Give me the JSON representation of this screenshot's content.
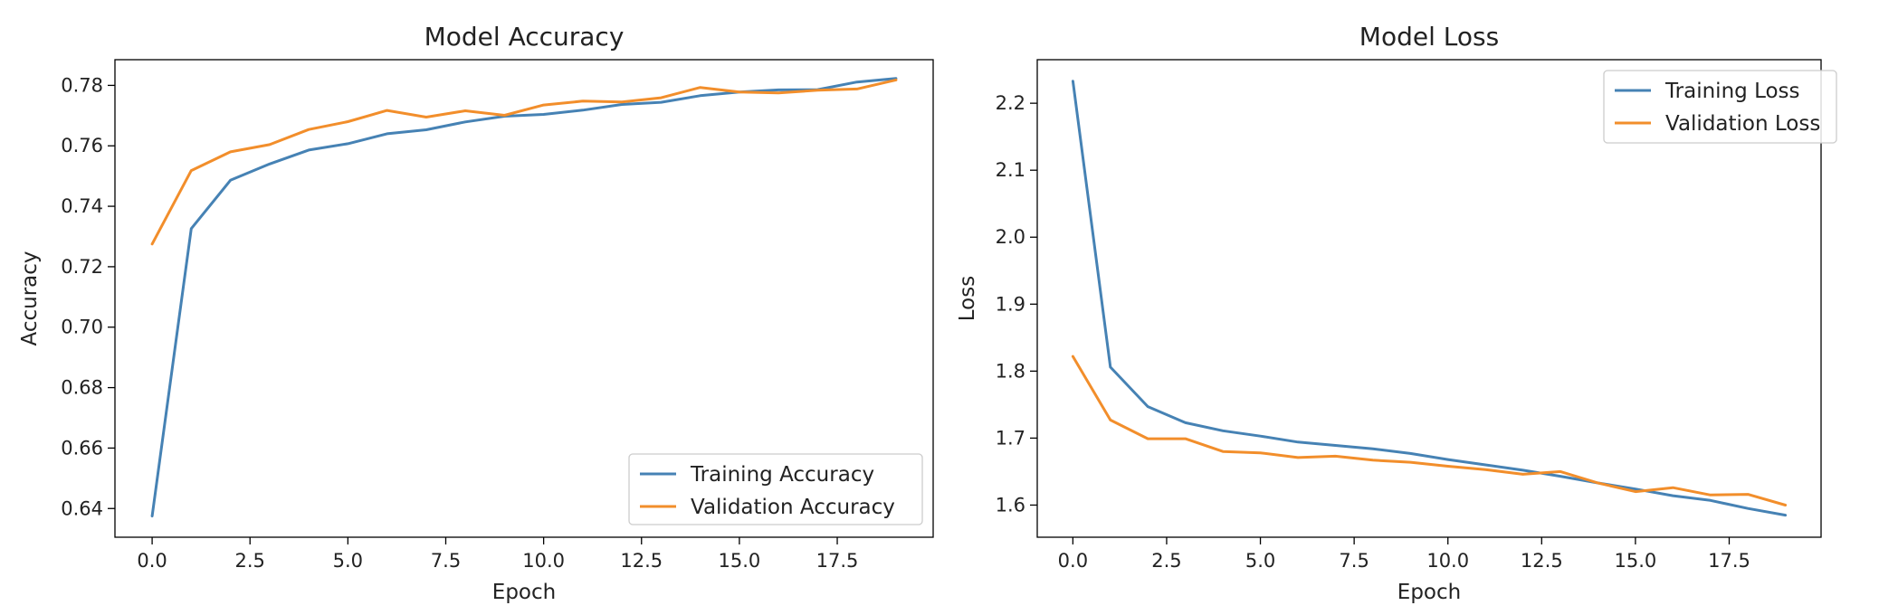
{
  "chart_data": [
    {
      "type": "line",
      "title": "Model Accuracy",
      "xlabel": "Epoch",
      "ylabel": "Accuracy",
      "xlim": [
        -0.95,
        19.95
      ],
      "ylim": [
        0.6305,
        0.7885
      ],
      "xticks": [
        0.0,
        2.5,
        5.0,
        7.5,
        10.0,
        12.5,
        15.0,
        17.5
      ],
      "xtick_labels": [
        "0.0",
        "2.5",
        "5.0",
        "7.5",
        "10.0",
        "12.5",
        "15.0",
        "17.5"
      ],
      "yticks": [
        0.64,
        0.66,
        0.68,
        0.7,
        0.72,
        0.74,
        0.76,
        0.78
      ],
      "ytick_labels": [
        "0.64",
        "0.66",
        "0.68",
        "0.70",
        "0.72",
        "0.74",
        "0.76",
        "0.78"
      ],
      "grid": false,
      "legend": "bottom-right",
      "x": [
        0,
        1,
        2,
        3,
        4,
        5,
        6,
        7,
        8,
        9,
        10,
        11,
        12,
        13,
        14,
        15,
        16,
        17,
        18,
        19
      ],
      "series": [
        {
          "name": "Training Accuracy",
          "color": "#4682b4",
          "values": [
            0.6375,
            0.7326,
            0.7486,
            0.754,
            0.7586,
            0.7607,
            0.764,
            0.7653,
            0.7679,
            0.7698,
            0.7704,
            0.7718,
            0.7737,
            0.7744,
            0.7766,
            0.7778,
            0.7785,
            0.7786,
            0.7811,
            0.7823
          ]
        },
        {
          "name": "Validation Accuracy",
          "color": "#f28e2b",
          "values": [
            0.7275,
            0.7518,
            0.758,
            0.7604,
            0.7654,
            0.768,
            0.7717,
            0.7695,
            0.7716,
            0.7701,
            0.7735,
            0.7748,
            0.7745,
            0.7759,
            0.7793,
            0.7778,
            0.7775,
            0.7784,
            0.7788,
            0.7818
          ]
        }
      ]
    },
    {
      "type": "line",
      "title": "Model Loss",
      "xlabel": "Epoch",
      "ylabel": "Loss",
      "xlim": [
        -0.95,
        19.95
      ],
      "ylim": [
        1.552,
        2.265
      ],
      "xticks": [
        0.0,
        2.5,
        5.0,
        7.5,
        10.0,
        12.5,
        15.0,
        17.5
      ],
      "xtick_labels": [
        "0.0",
        "2.5",
        "5.0",
        "7.5",
        "10.0",
        "12.5",
        "15.0",
        "17.5"
      ],
      "yticks": [
        1.6,
        1.7,
        1.8,
        1.9,
        2.0,
        2.1,
        2.2
      ],
      "ytick_labels": [
        "1.6",
        "1.7",
        "1.8",
        "1.9",
        "2.0",
        "2.1",
        "2.2"
      ],
      "grid": false,
      "legend": "top-right",
      "x": [
        0,
        1,
        2,
        3,
        4,
        5,
        6,
        7,
        8,
        9,
        10,
        11,
        12,
        13,
        14,
        15,
        16,
        17,
        18,
        19
      ],
      "series": [
        {
          "name": "Training Loss",
          "color": "#4682b4",
          "values": [
            2.233,
            1.806,
            1.747,
            1.723,
            1.711,
            1.703,
            1.694,
            1.689,
            1.684,
            1.677,
            1.668,
            1.66,
            1.652,
            1.643,
            1.633,
            1.624,
            1.614,
            1.607,
            1.595,
            1.585
          ]
        },
        {
          "name": "Validation Loss",
          "color": "#f28e2b",
          "values": [
            1.822,
            1.727,
            1.699,
            1.699,
            1.68,
            1.678,
            1.671,
            1.673,
            1.667,
            1.664,
            1.658,
            1.653,
            1.646,
            1.65,
            1.633,
            1.62,
            1.626,
            1.615,
            1.616,
            1.6
          ]
        }
      ]
    }
  ]
}
